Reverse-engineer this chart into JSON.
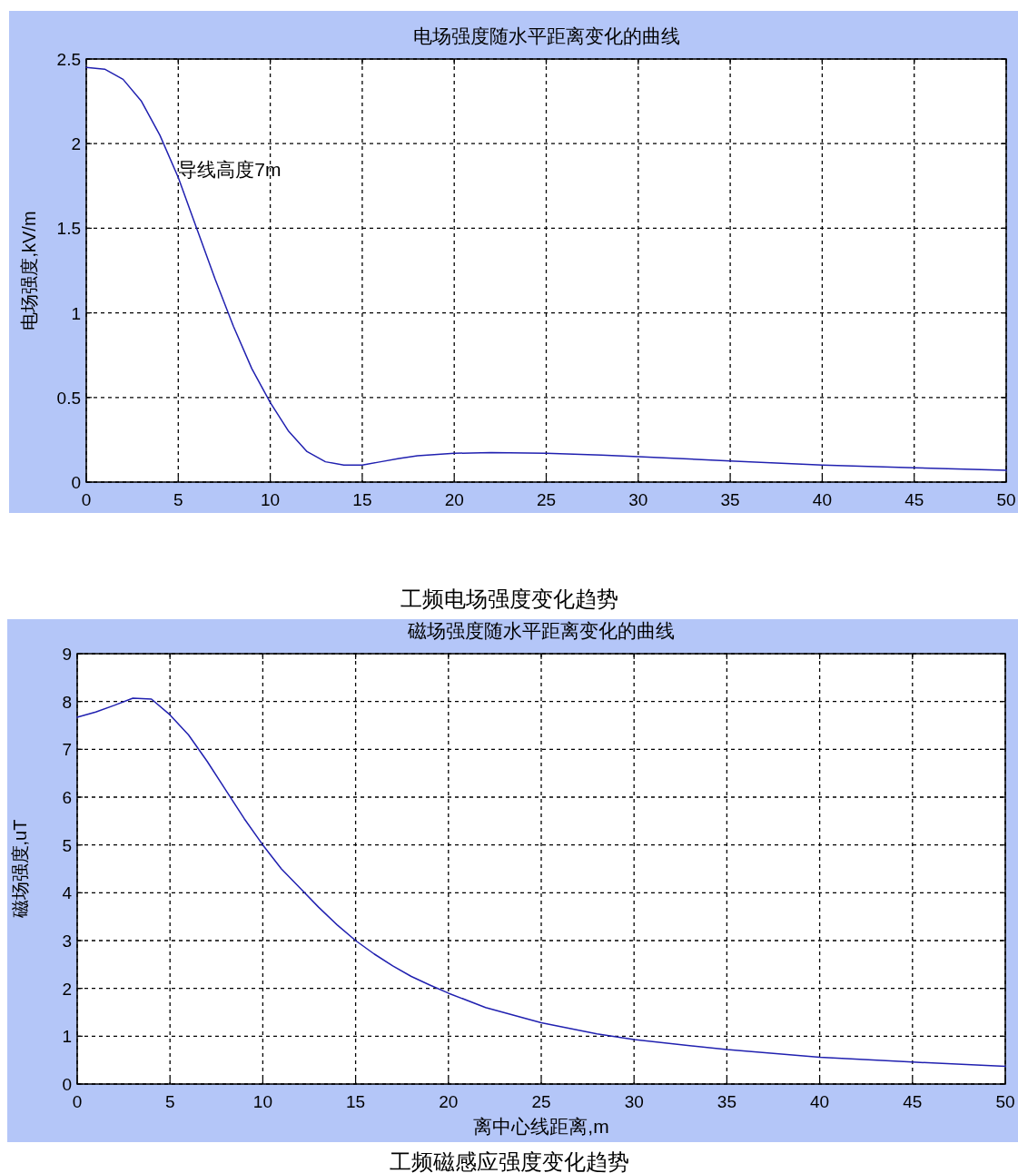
{
  "chart_data": [
    {
      "type": "line",
      "title": "电场强度随水平距离变化的曲线",
      "ylabel": "电场强度,kV/m",
      "color": "#2020b0",
      "grid": true,
      "x": [
        0,
        1,
        2,
        3,
        4,
        5,
        6,
        7,
        8,
        9,
        10,
        11,
        12,
        13,
        14,
        15,
        16,
        17,
        18,
        20,
        22,
        25,
        28,
        30,
        35,
        40,
        45,
        50
      ],
      "values": [
        2.45,
        2.44,
        2.38,
        2.25,
        2.05,
        1.8,
        1.5,
        1.2,
        0.92,
        0.67,
        0.47,
        0.3,
        0.18,
        0.12,
        0.1,
        0.1,
        0.12,
        0.14,
        0.155,
        0.17,
        0.175,
        0.17,
        0.16,
        0.15,
        0.125,
        0.1,
        0.085,
        0.07
      ],
      "xlim": [
        0,
        50
      ],
      "ylim": [
        0,
        2.5
      ],
      "xticks": [
        0,
        5,
        10,
        15,
        20,
        25,
        30,
        35,
        40,
        45,
        50
      ],
      "yticks": [
        0,
        0.5,
        1,
        1.5,
        2,
        2.5
      ],
      "annotations": [
        {
          "text": "导线高度7m",
          "x": 5,
          "y": 1.85
        },
        "工频电场强度变化趋势"
      ]
    },
    {
      "type": "line",
      "title": "磁场强度随水平距离变化的曲线",
      "xlabel": "离中心线距离,m",
      "ylabel": "磁场强度,uT",
      "color": "#2020b0",
      "grid": true,
      "x": [
        0,
        1,
        2,
        3,
        4,
        5,
        6,
        7,
        8,
        9,
        10,
        11,
        12,
        13,
        14,
        15,
        16,
        17,
        18,
        19,
        20,
        22,
        25,
        28,
        30,
        35,
        40,
        45,
        50
      ],
      "values": [
        7.67,
        7.78,
        7.92,
        8.07,
        8.05,
        7.72,
        7.3,
        6.75,
        6.15,
        5.55,
        5.0,
        4.5,
        4.1,
        3.7,
        3.33,
        3.0,
        2.72,
        2.47,
        2.25,
        2.07,
        1.9,
        1.6,
        1.28,
        1.05,
        0.93,
        0.72,
        0.56,
        0.46,
        0.37
      ],
      "xlim": [
        0,
        50
      ],
      "ylim": [
        0,
        9
      ],
      "xticks": [
        0,
        5,
        10,
        15,
        20,
        25,
        30,
        35,
        40,
        45,
        50
      ],
      "yticks": [
        0,
        1,
        2,
        3,
        4,
        5,
        6,
        7,
        8,
        9
      ],
      "annotations": [
        "工频磁感应强度变化趋势"
      ]
    }
  ]
}
